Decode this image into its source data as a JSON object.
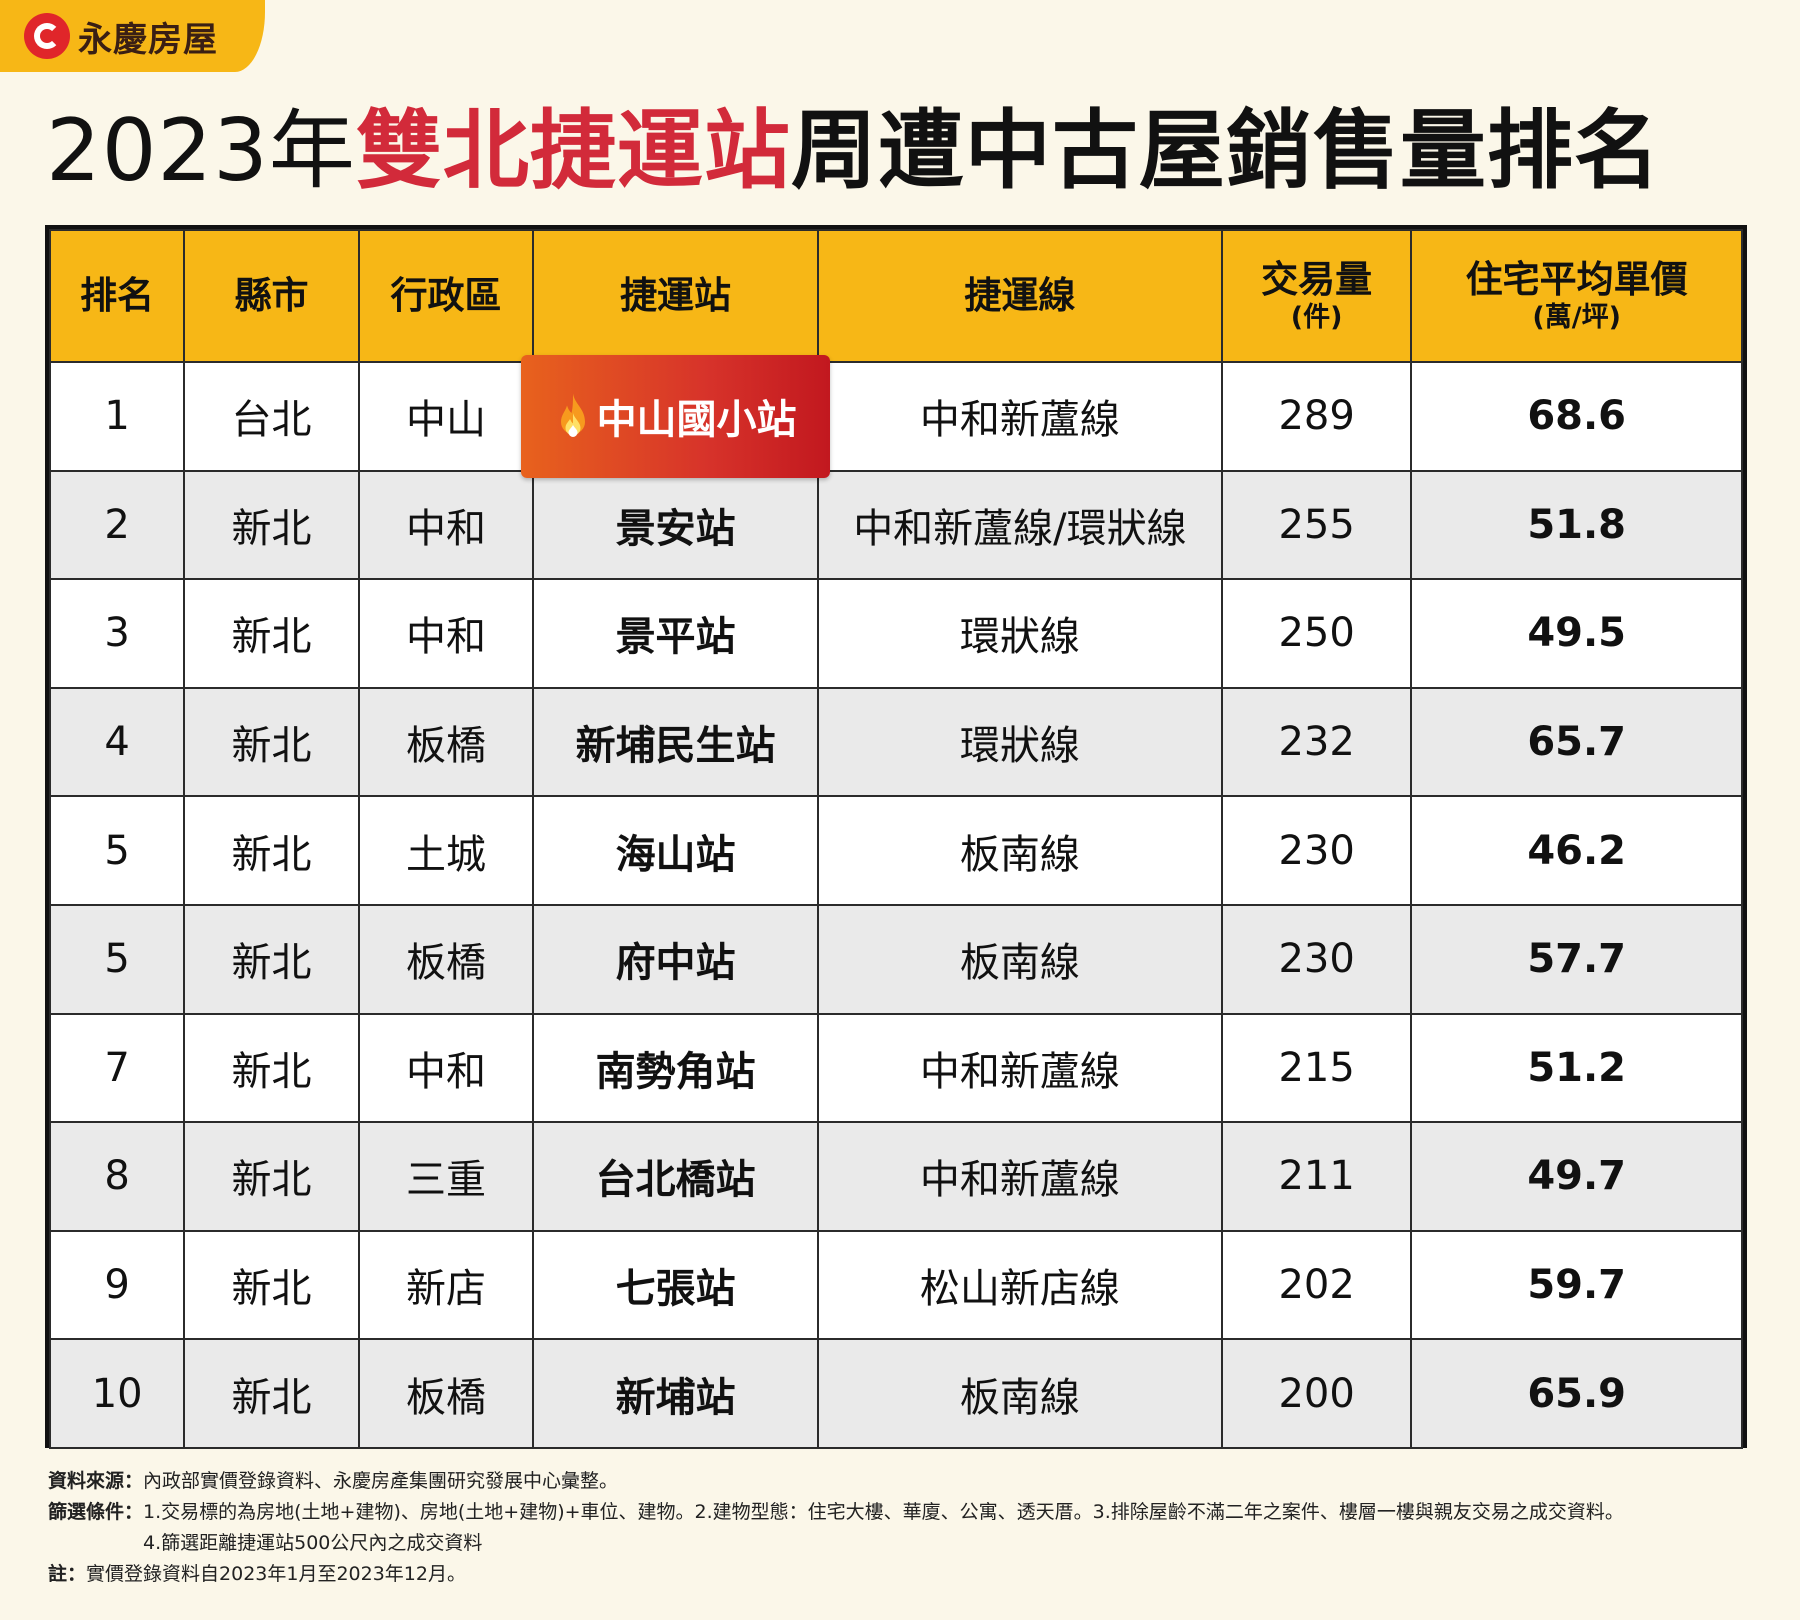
{
  "brand": {
    "name": "永慶房屋"
  },
  "title": {
    "year": "2023年",
    "highlight": "雙北捷運站",
    "rest": "周遭中古屋銷售量排名"
  },
  "table": {
    "headers": {
      "rank": "排名",
      "city": "縣市",
      "district": "行政區",
      "station": "捷運站",
      "line": "捷運線",
      "volume": "交易量",
      "volume_unit": "(件)",
      "price": "住宅平均單價",
      "price_unit": "(萬/坪)"
    },
    "rows": [
      {
        "rank": "1",
        "city": "台北",
        "district": "中山",
        "station": "中山國小站",
        "line": "中和新蘆線",
        "volume": "289",
        "price": "68.6"
      },
      {
        "rank": "2",
        "city": "新北",
        "district": "中和",
        "station": "景安站",
        "line": "中和新蘆線/環狀線",
        "volume": "255",
        "price": "51.8"
      },
      {
        "rank": "3",
        "city": "新北",
        "district": "中和",
        "station": "景平站",
        "line": "環狀線",
        "volume": "250",
        "price": "49.5"
      },
      {
        "rank": "4",
        "city": "新北",
        "district": "板橋",
        "station": "新埔民生站",
        "line": "環狀線",
        "volume": "232",
        "price": "65.7"
      },
      {
        "rank": "5",
        "city": "新北",
        "district": "土城",
        "station": "海山站",
        "line": "板南線",
        "volume": "230",
        "price": "46.2"
      },
      {
        "rank": "5",
        "city": "新北",
        "district": "板橋",
        "station": "府中站",
        "line": "板南線",
        "volume": "230",
        "price": "57.7"
      },
      {
        "rank": "7",
        "city": "新北",
        "district": "中和",
        "station": "南勢角站",
        "line": "中和新蘆線",
        "volume": "215",
        "price": "51.2"
      },
      {
        "rank": "8",
        "city": "新北",
        "district": "三重",
        "station": "台北橋站",
        "line": "中和新蘆線",
        "volume": "211",
        "price": "49.7"
      },
      {
        "rank": "9",
        "city": "新北",
        "district": "新店",
        "station": "七張站",
        "line": "松山新店線",
        "volume": "202",
        "price": "59.7"
      },
      {
        "rank": "10",
        "city": "新北",
        "district": "板橋",
        "station": "新埔站",
        "line": "板南線",
        "volume": "200",
        "price": "65.9"
      }
    ]
  },
  "notes": {
    "source_label": "資料來源：",
    "source": "內政部實價登錄資料、永慶房產集團研究發展中心彙整。",
    "filter_label": "篩選條件：",
    "filter_1": "1.交易標的為房地(土地+建物)、房地(土地+建物)+車位、建物。2.建物型態：住宅大樓、華廈、公寓、透天厝。3.排除屋齡不滿二年之案件、樓層一樓與親友交易之成交資料。",
    "filter_2": "4.篩選距離捷運站500公尺內之成交資料",
    "note_label": "註：",
    "note": "實價登錄資料自2023年1月至2023年12月。"
  },
  "icons": {
    "hot_badge": "flame-icon",
    "logo": "brand-logo-icon"
  },
  "colors": {
    "header_bg": "#F7B716",
    "title_highlight": "#D22A3A",
    "badge": "#D7332A",
    "alt_row": "#EAEAEA"
  }
}
